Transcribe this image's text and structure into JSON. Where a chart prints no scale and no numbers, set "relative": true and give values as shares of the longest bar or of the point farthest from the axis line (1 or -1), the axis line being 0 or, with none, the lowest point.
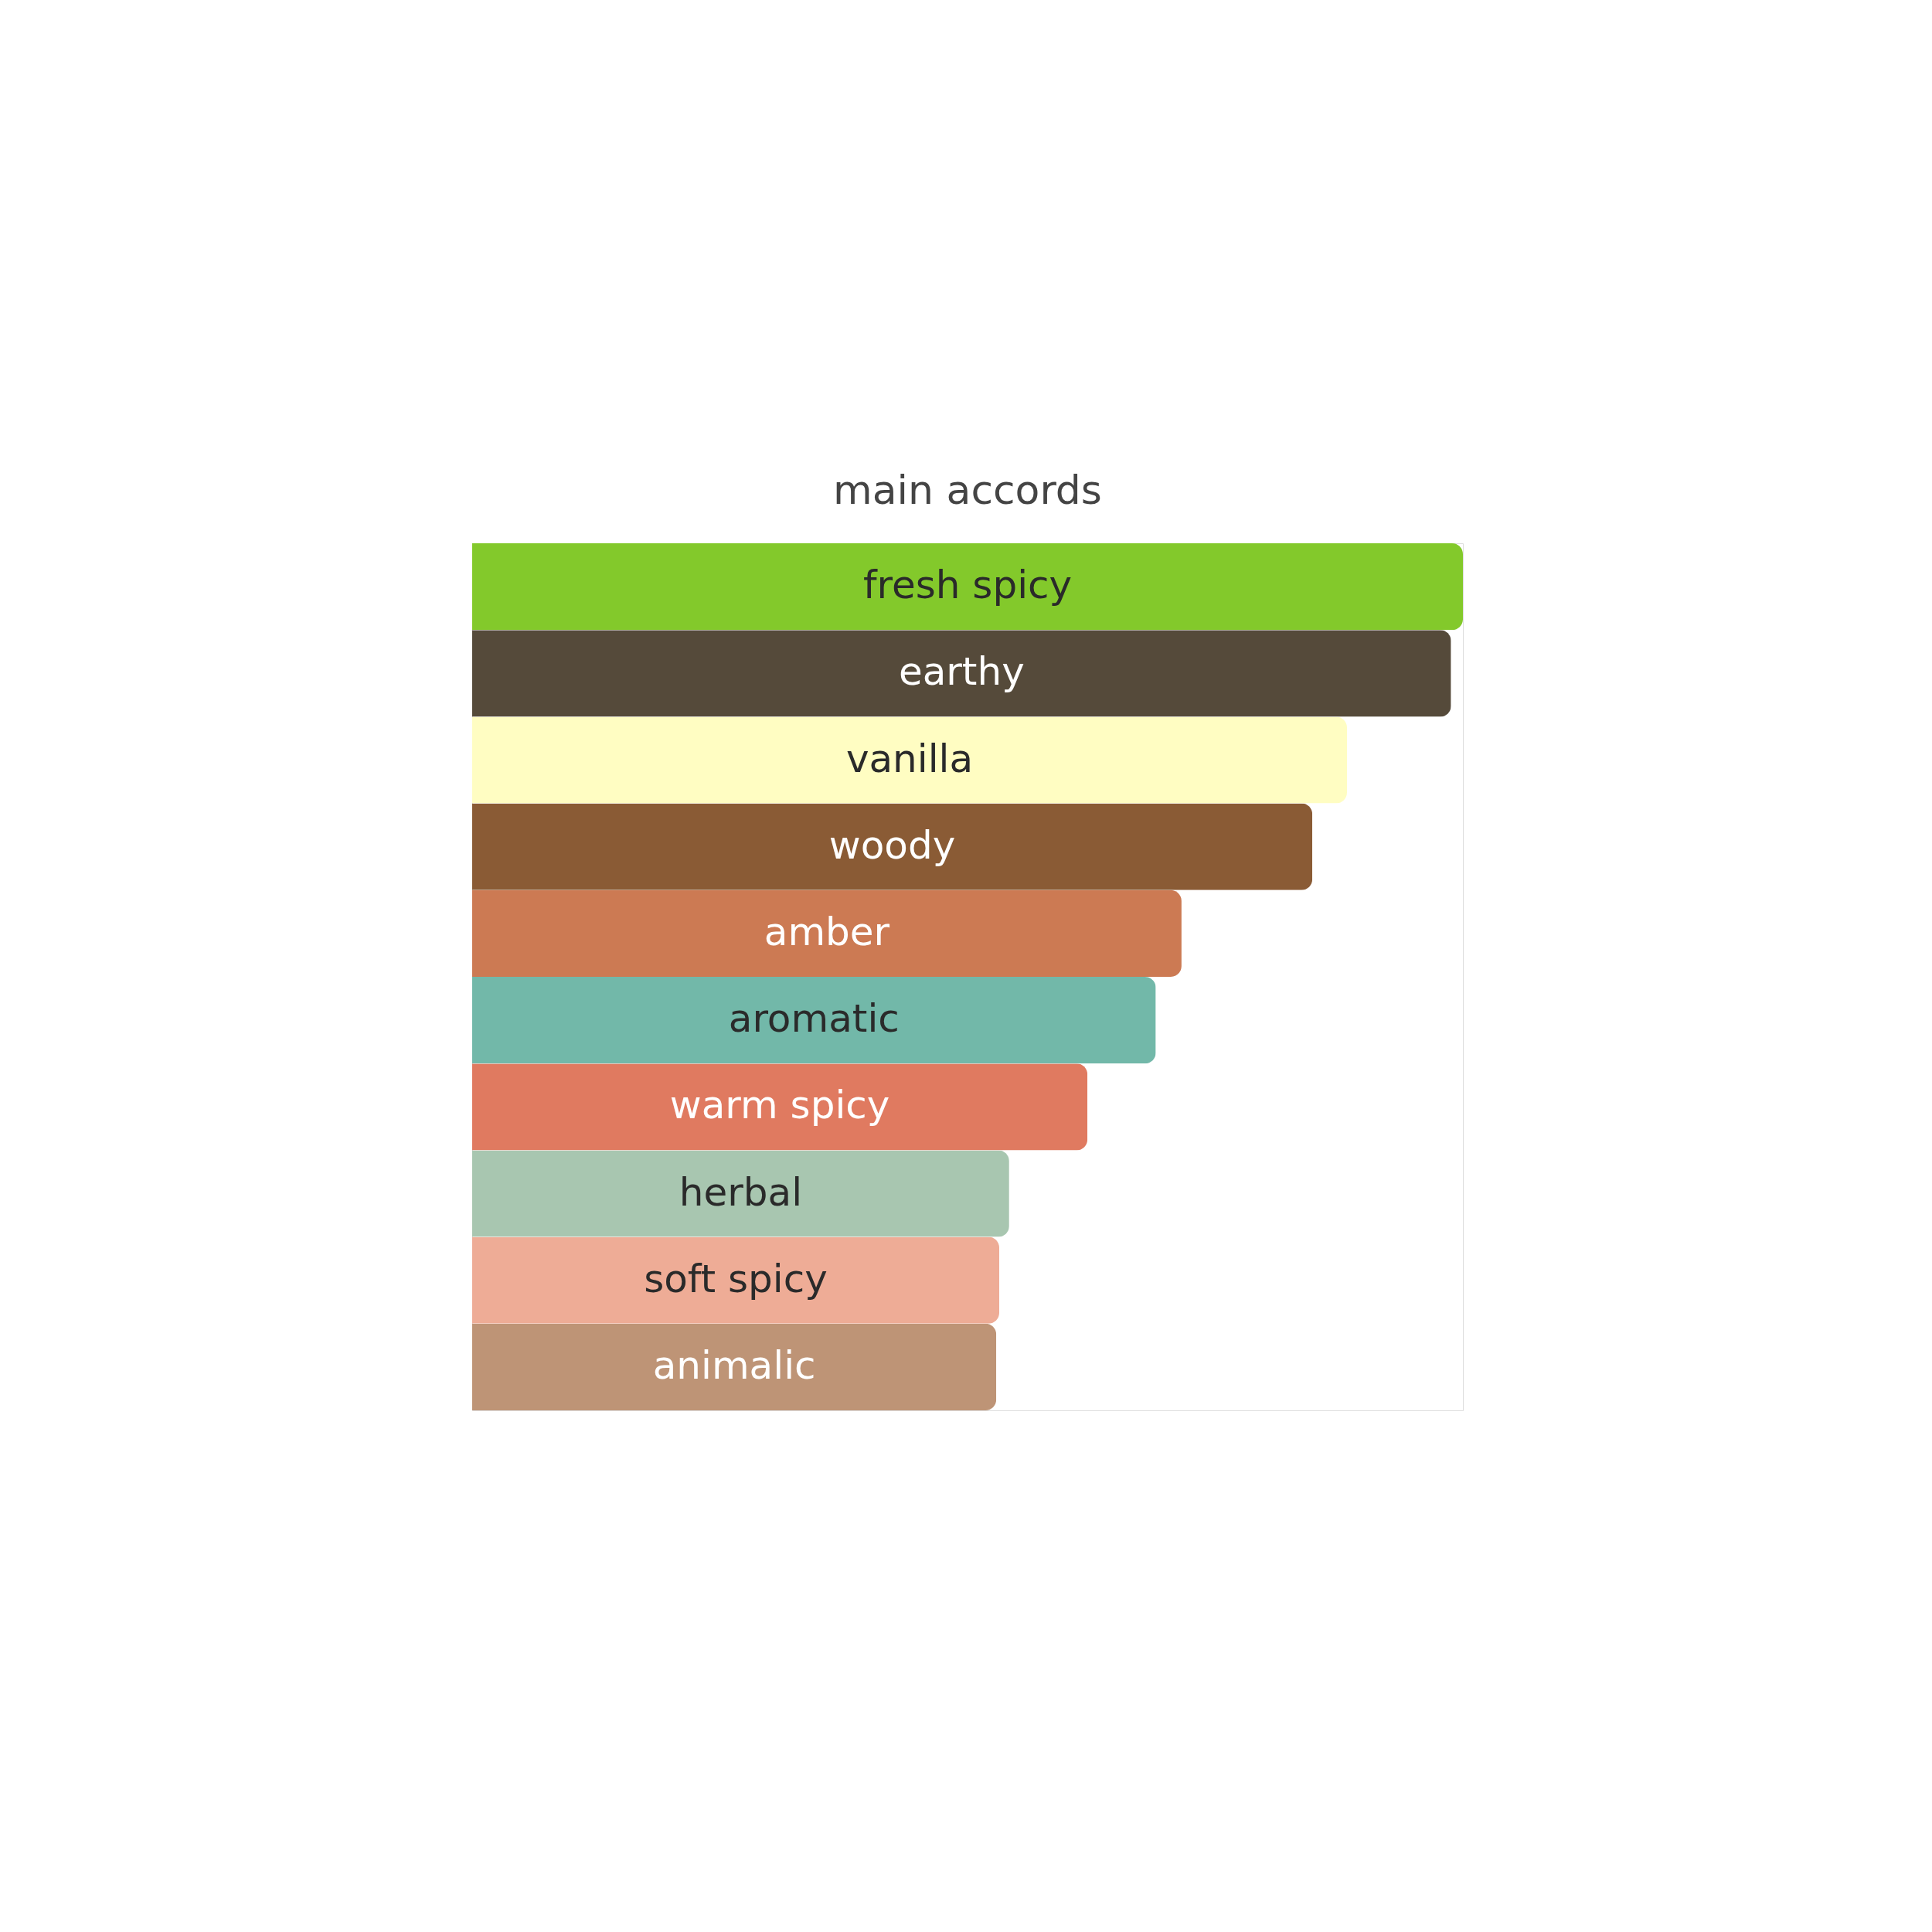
{
  "chart_data": {
    "type": "bar",
    "title": "main accords",
    "orientation": "horizontal",
    "relative": true,
    "tick_labels": false,
    "categories": [
      "fresh spicy",
      "earthy",
      "vanilla",
      "woody",
      "amber",
      "aromatic",
      "warm spicy",
      "herbal",
      "soft spicy",
      "animalic"
    ],
    "values": [
      1,
      0.988,
      0.883,
      0.848,
      0.716,
      0.69,
      0.621,
      0.542,
      0.532,
      0.529
    ],
    "colors": [
      "#83c92b",
      "#554a3a",
      "#fffdc2",
      "#8a5b35",
      "#cc7a53",
      "#72b8a9",
      "#e07a60",
      "#a8c6b0",
      "#eeac96",
      "#be9476"
    ]
  }
}
